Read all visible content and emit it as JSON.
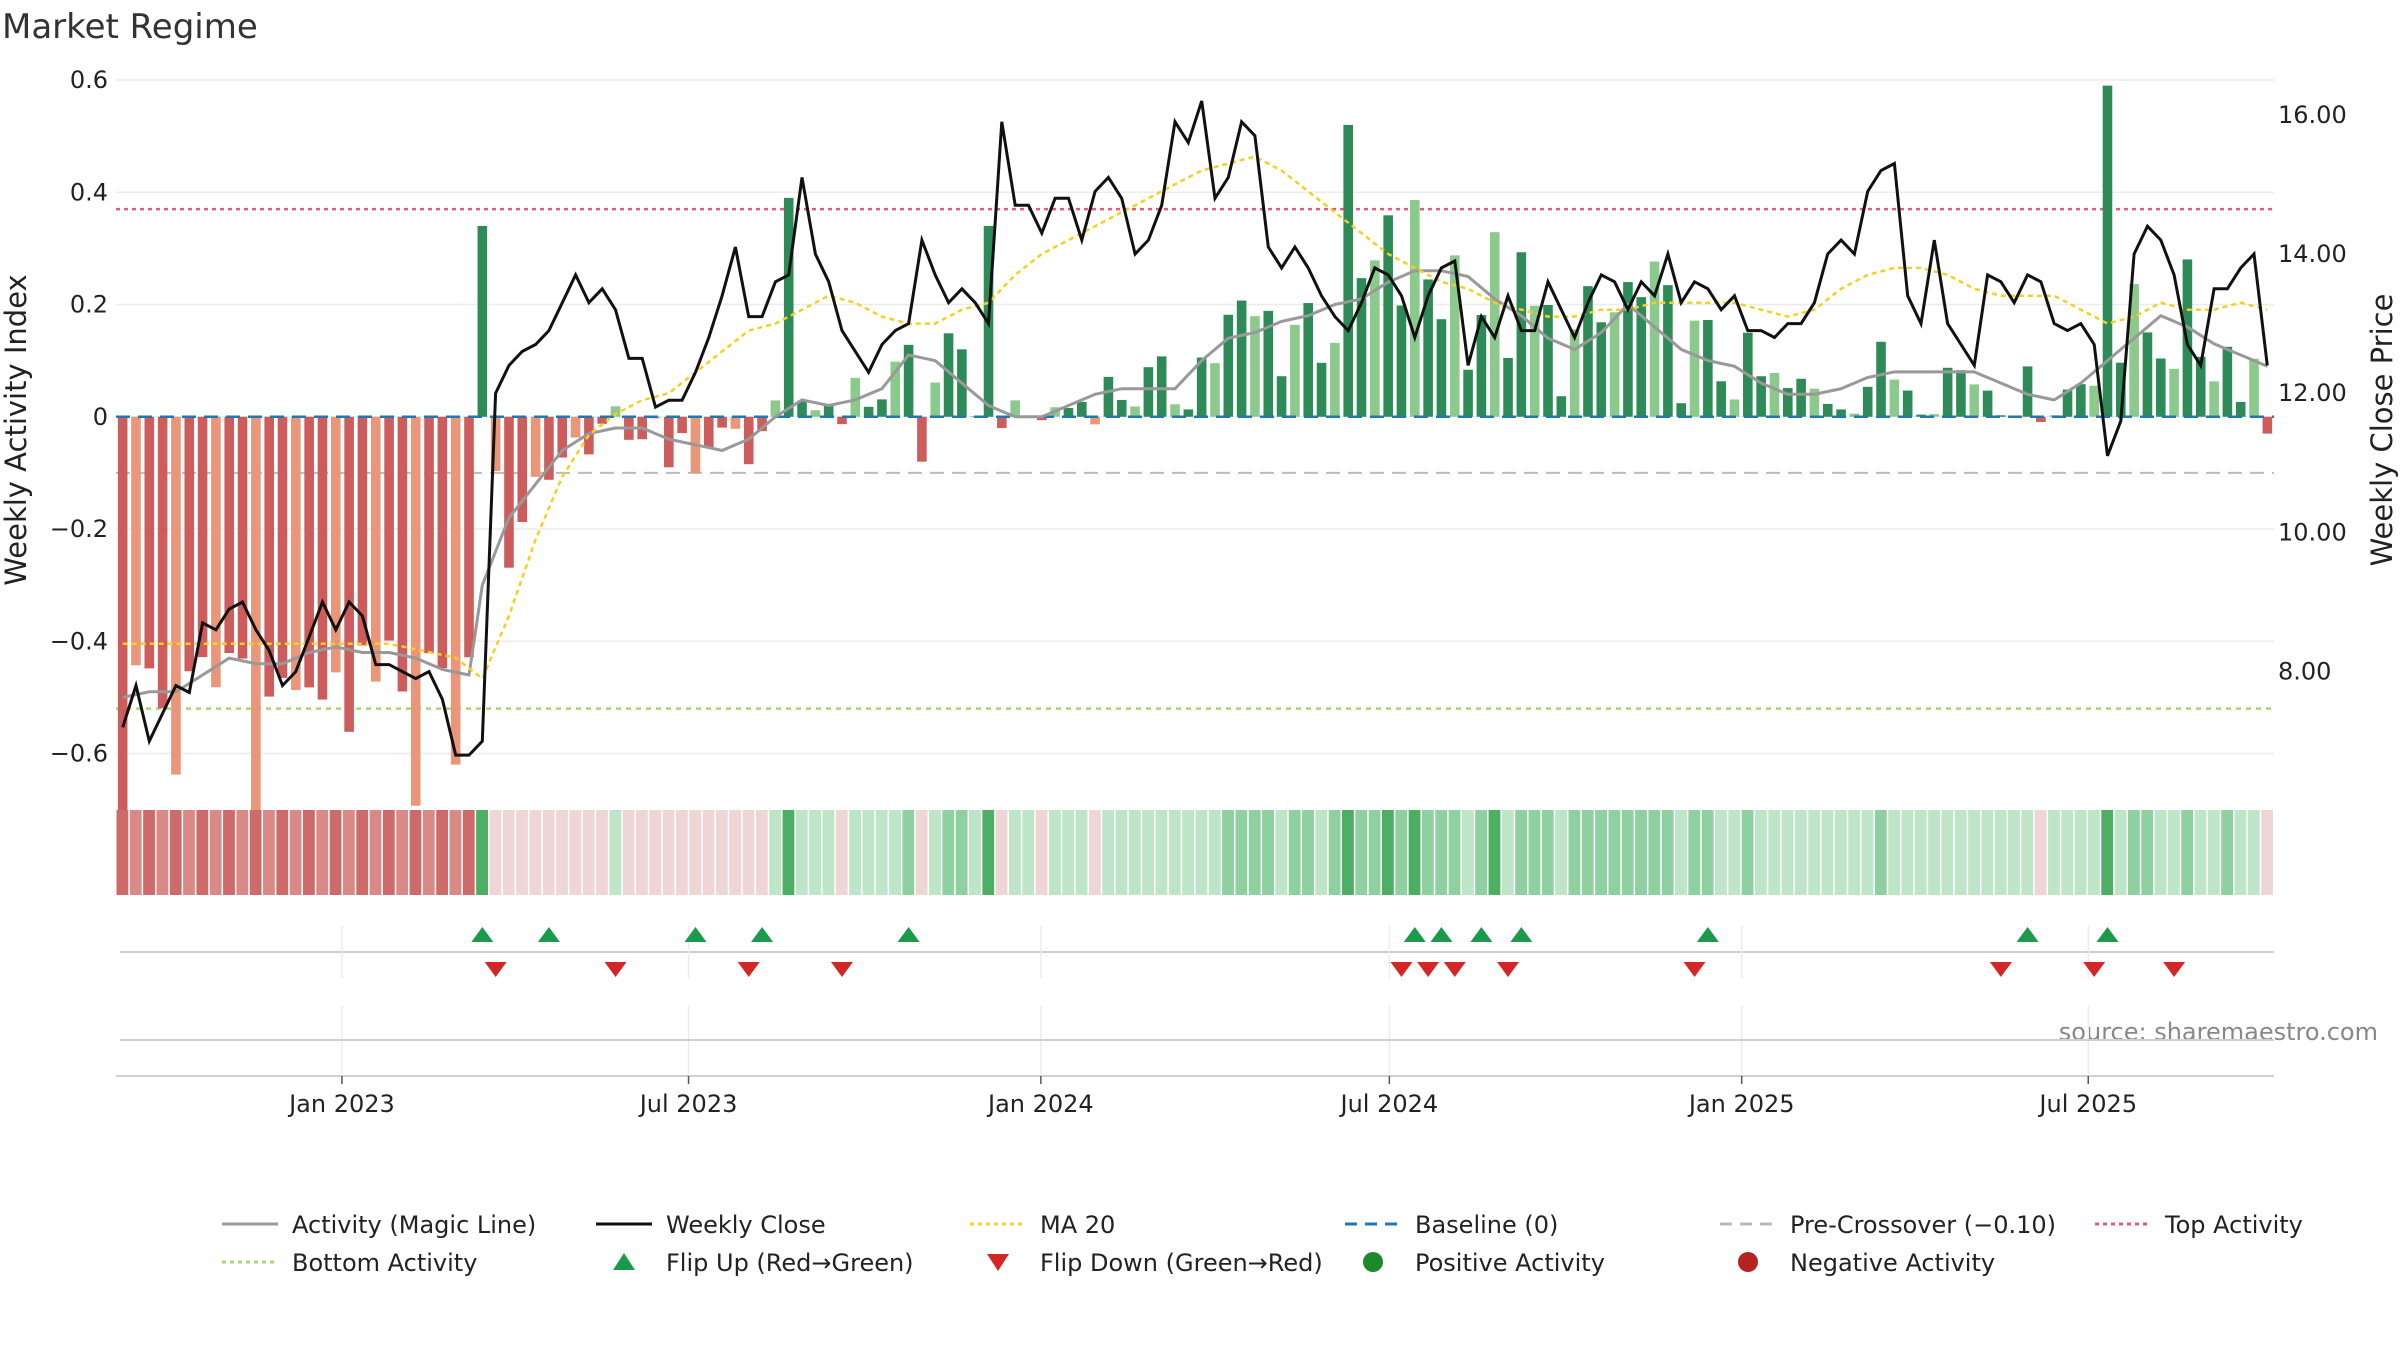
{
  "title": "Market Regime",
  "source": "source: sharemaestro.com",
  "colors": {
    "pos_strong": "#2e8b57",
    "pos_light": "#8cc98c",
    "neg_strong": "#cd5c5c",
    "neg_light": "#e9967a",
    "magic": "#999999",
    "close": "#111111",
    "ma": "#f5d020",
    "baseline": "#1f77b4",
    "precross": "#bbbbbb",
    "top": "#e8597a",
    "bottom": "#a8d86e",
    "flip_up": "#1a9a4a",
    "flip_down": "#d32626"
  },
  "chart_data": {
    "type": "bar",
    "title": "Market Regime",
    "ylabel": "Weekly Activity Index",
    "y2label": "Weekly Close Price",
    "ylim": [
      -0.64,
      0.6
    ],
    "y2lim": [
      6.5,
      16.5
    ],
    "yticks": [
      0.6,
      0.4,
      0.2,
      0,
      -0.2,
      -0.4,
      -0.6
    ],
    "yticklabels": [
      "0.6",
      "0.4",
      "0.2",
      "0",
      "−0.2",
      "−0.4",
      "−0.6"
    ],
    "y2ticks": [
      16,
      14,
      12,
      10,
      8
    ],
    "y2ticklabels": [
      "16.00",
      "14.00",
      "12.00",
      "10.00",
      "8.00"
    ],
    "x_start": "2022-09-05",
    "x_end": "2025-10-06",
    "week_count": 162,
    "xticks": [
      "2023-01-01",
      "2023-07-01",
      "2024-01-01",
      "2024-07-01",
      "2025-01-01",
      "2025-07-01"
    ],
    "xticklabels": [
      "Jan 2023",
      "Jul 2023",
      "Jan 2024",
      "Jul 2024",
      "Jan 2025",
      "Jul 2025"
    ],
    "reference_lines": {
      "baseline": 0,
      "pre_crossover": -0.1,
      "top_activity": 0.37,
      "bottom_activity": -0.52
    },
    "activity_knots": [
      [
        0,
        -0.5
      ],
      [
        2,
        -0.49
      ],
      [
        4,
        -0.49
      ],
      [
        6,
        -0.46
      ],
      [
        8,
        -0.43
      ],
      [
        10,
        -0.44
      ],
      [
        12,
        -0.44
      ],
      [
        14,
        -0.42
      ],
      [
        16,
        -0.41
      ],
      [
        18,
        -0.42
      ],
      [
        20,
        -0.42
      ],
      [
        22,
        -0.43
      ],
      [
        24,
        -0.45
      ],
      [
        26,
        -0.46
      ],
      [
        27,
        -0.3
      ],
      [
        29,
        -0.18
      ],
      [
        31,
        -0.12
      ],
      [
        33,
        -0.06
      ],
      [
        35,
        -0.03
      ],
      [
        37,
        -0.02
      ],
      [
        39,
        -0.02
      ],
      [
        41,
        -0.04
      ],
      [
        43,
        -0.05
      ],
      [
        45,
        -0.06
      ],
      [
        47,
        -0.04
      ],
      [
        49,
        0.0
      ],
      [
        51,
        0.03
      ],
      [
        53,
        0.02
      ],
      [
        55,
        0.03
      ],
      [
        57,
        0.05
      ],
      [
        59,
        0.11
      ],
      [
        61,
        0.1
      ],
      [
        63,
        0.06
      ],
      [
        65,
        0.02
      ],
      [
        67,
        0.0
      ],
      [
        69,
        0.0
      ],
      [
        71,
        0.02
      ],
      [
        73,
        0.04
      ],
      [
        75,
        0.05
      ],
      [
        77,
        0.05
      ],
      [
        79,
        0.05
      ],
      [
        81,
        0.1
      ],
      [
        83,
        0.14
      ],
      [
        85,
        0.15
      ],
      [
        87,
        0.17
      ],
      [
        89,
        0.18
      ],
      [
        91,
        0.2
      ],
      [
        93,
        0.21
      ],
      [
        95,
        0.24
      ],
      [
        97,
        0.26
      ],
      [
        99,
        0.26
      ],
      [
        101,
        0.25
      ],
      [
        103,
        0.21
      ],
      [
        105,
        0.18
      ],
      [
        107,
        0.14
      ],
      [
        109,
        0.12
      ],
      [
        111,
        0.15
      ],
      [
        113,
        0.2
      ],
      [
        115,
        0.16
      ],
      [
        117,
        0.12
      ],
      [
        119,
        0.1
      ],
      [
        121,
        0.09
      ],
      [
        123,
        0.06
      ],
      [
        125,
        0.04
      ],
      [
        127,
        0.04
      ],
      [
        129,
        0.05
      ],
      [
        131,
        0.07
      ],
      [
        133,
        0.08
      ],
      [
        135,
        0.08
      ],
      [
        137,
        0.08
      ],
      [
        139,
        0.08
      ],
      [
        141,
        0.06
      ],
      [
        143,
        0.04
      ],
      [
        145,
        0.03
      ],
      [
        147,
        0.06
      ],
      [
        149,
        0.1
      ],
      [
        151,
        0.14
      ],
      [
        153,
        0.18
      ],
      [
        155,
        0.16
      ],
      [
        157,
        0.13
      ],
      [
        159,
        0.11
      ],
      [
        161,
        0.09
      ]
    ],
    "close_knots": [
      [
        0,
        7.2
      ],
      [
        1,
        7.8
      ],
      [
        2,
        7.0
      ],
      [
        3,
        7.4
      ],
      [
        4,
        7.8
      ],
      [
        5,
        7.7
      ],
      [
        6,
        8.7
      ],
      [
        7,
        8.6
      ],
      [
        8,
        8.9
      ],
      [
        9,
        9.0
      ],
      [
        10,
        8.6
      ],
      [
        11,
        8.3
      ],
      [
        12,
        7.8
      ],
      [
        13,
        8.0
      ],
      [
        14,
        8.5
      ],
      [
        15,
        9.0
      ],
      [
        16,
        8.6
      ],
      [
        17,
        9.0
      ],
      [
        18,
        8.8
      ],
      [
        19,
        8.1
      ],
      [
        20,
        8.1
      ],
      [
        21,
        8.0
      ],
      [
        22,
        7.9
      ],
      [
        23,
        8.0
      ],
      [
        24,
        7.6
      ],
      [
        25,
        6.8
      ],
      [
        26,
        6.8
      ],
      [
        27,
        7.0
      ],
      [
        28,
        12.0
      ],
      [
        29,
        12.4
      ],
      [
        30,
        12.6
      ],
      [
        31,
        12.7
      ],
      [
        32,
        12.9
      ],
      [
        33,
        13.3
      ],
      [
        34,
        13.7
      ],
      [
        35,
        13.3
      ],
      [
        36,
        13.5
      ],
      [
        37,
        13.2
      ],
      [
        38,
        12.5
      ],
      [
        39,
        12.5
      ],
      [
        40,
        11.8
      ],
      [
        41,
        11.9
      ],
      [
        42,
        11.9
      ],
      [
        43,
        12.3
      ],
      [
        44,
        12.8
      ],
      [
        45,
        13.4
      ],
      [
        46,
        14.1
      ],
      [
        47,
        13.1
      ],
      [
        48,
        13.1
      ],
      [
        49,
        13.6
      ],
      [
        50,
        13.7
      ],
      [
        51,
        15.1
      ],
      [
        52,
        14.0
      ],
      [
        53,
        13.6
      ],
      [
        54,
        12.9
      ],
      [
        55,
        12.6
      ],
      [
        56,
        12.3
      ],
      [
        57,
        12.7
      ],
      [
        58,
        12.9
      ],
      [
        59,
        13.0
      ],
      [
        60,
        14.2
      ],
      [
        61,
        13.7
      ],
      [
        62,
        13.3
      ],
      [
        63,
        13.5
      ],
      [
        64,
        13.3
      ],
      [
        65,
        13.0
      ],
      [
        66,
        15.9
      ],
      [
        67,
        14.7
      ],
      [
        68,
        14.7
      ],
      [
        69,
        14.3
      ],
      [
        70,
        14.8
      ],
      [
        71,
        14.8
      ],
      [
        72,
        14.2
      ],
      [
        73,
        14.9
      ],
      [
        74,
        15.1
      ],
      [
        75,
        14.8
      ],
      [
        76,
        14.0
      ],
      [
        77,
        14.2
      ],
      [
        78,
        14.7
      ],
      [
        79,
        15.9
      ],
      [
        80,
        15.6
      ],
      [
        81,
        16.2
      ],
      [
        82,
        14.8
      ],
      [
        83,
        15.1
      ],
      [
        84,
        15.9
      ],
      [
        85,
        15.7
      ],
      [
        86,
        14.1
      ],
      [
        87,
        13.8
      ],
      [
        88,
        14.1
      ],
      [
        89,
        13.8
      ],
      [
        90,
        13.4
      ],
      [
        91,
        13.1
      ],
      [
        92,
        12.9
      ],
      [
        93,
        13.3
      ],
      [
        94,
        13.8
      ],
      [
        95,
        13.7
      ],
      [
        96,
        13.4
      ],
      [
        97,
        12.8
      ],
      [
        98,
        13.4
      ],
      [
        99,
        13.8
      ],
      [
        100,
        13.9
      ],
      [
        101,
        12.4
      ],
      [
        102,
        13.1
      ],
      [
        103,
        12.8
      ],
      [
        104,
        13.4
      ],
      [
        105,
        12.9
      ],
      [
        106,
        12.9
      ],
      [
        107,
        13.6
      ],
      [
        108,
        13.2
      ],
      [
        109,
        12.8
      ],
      [
        110,
        13.3
      ],
      [
        111,
        13.7
      ],
      [
        112,
        13.6
      ],
      [
        113,
        13.2
      ],
      [
        114,
        13.6
      ],
      [
        115,
        13.4
      ],
      [
        116,
        14.0
      ],
      [
        117,
        13.3
      ],
      [
        118,
        13.6
      ],
      [
        119,
        13.5
      ],
      [
        120,
        13.2
      ],
      [
        121,
        13.4
      ],
      [
        122,
        12.9
      ],
      [
        123,
        12.9
      ],
      [
        124,
        12.8
      ],
      [
        125,
        13.0
      ],
      [
        126,
        13.0
      ],
      [
        127,
        13.3
      ],
      [
        128,
        14.0
      ],
      [
        129,
        14.2
      ],
      [
        130,
        14.0
      ],
      [
        131,
        14.9
      ],
      [
        132,
        15.2
      ],
      [
        133,
        15.3
      ],
      [
        134,
        13.4
      ],
      [
        135,
        13.0
      ],
      [
        136,
        14.2
      ],
      [
        137,
        13.0
      ],
      [
        138,
        12.7
      ],
      [
        139,
        12.4
      ],
      [
        140,
        13.7
      ],
      [
        141,
        13.6
      ],
      [
        142,
        13.3
      ],
      [
        143,
        13.7
      ],
      [
        144,
        13.6
      ],
      [
        145,
        13.0
      ],
      [
        146,
        12.9
      ],
      [
        147,
        13.0
      ],
      [
        148,
        12.7
      ],
      [
        149,
        11.1
      ],
      [
        150,
        11.6
      ],
      [
        151,
        14.0
      ],
      [
        152,
        14.4
      ],
      [
        153,
        14.2
      ],
      [
        154,
        13.7
      ],
      [
        155,
        12.7
      ],
      [
        156,
        12.4
      ],
      [
        157,
        13.5
      ],
      [
        158,
        13.5
      ],
      [
        159,
        13.8
      ],
      [
        160,
        14.0
      ],
      [
        161,
        12.4
      ]
    ],
    "ma_knots": [
      [
        0,
        8.4
      ],
      [
        10,
        8.4
      ],
      [
        20,
        8.4
      ],
      [
        25,
        8.2
      ],
      [
        27,
        7.9
      ],
      [
        29,
        8.8
      ],
      [
        31,
        9.9
      ],
      [
        33,
        10.8
      ],
      [
        35,
        11.4
      ],
      [
        37,
        11.7
      ],
      [
        39,
        11.9
      ],
      [
        41,
        12.0
      ],
      [
        43,
        12.3
      ],
      [
        45,
        12.6
      ],
      [
        47,
        12.9
      ],
      [
        49,
        13.0
      ],
      [
        51,
        13.2
      ],
      [
        53,
        13.4
      ],
      [
        55,
        13.3
      ],
      [
        57,
        13.1
      ],
      [
        59,
        13.0
      ],
      [
        61,
        13.0
      ],
      [
        63,
        13.2
      ],
      [
        65,
        13.3
      ],
      [
        67,
        13.7
      ],
      [
        69,
        14.0
      ],
      [
        71,
        14.2
      ],
      [
        73,
        14.4
      ],
      [
        75,
        14.6
      ],
      [
        77,
        14.8
      ],
      [
        79,
        15.0
      ],
      [
        81,
        15.2
      ],
      [
        83,
        15.3
      ],
      [
        85,
        15.4
      ],
      [
        87,
        15.2
      ],
      [
        89,
        14.9
      ],
      [
        91,
        14.6
      ],
      [
        93,
        14.3
      ],
      [
        95,
        14.0
      ],
      [
        97,
        13.8
      ],
      [
        99,
        13.6
      ],
      [
        101,
        13.5
      ],
      [
        103,
        13.3
      ],
      [
        105,
        13.2
      ],
      [
        107,
        13.1
      ],
      [
        109,
        13.1
      ],
      [
        111,
        13.2
      ],
      [
        113,
        13.2
      ],
      [
        115,
        13.3
      ],
      [
        117,
        13.3
      ],
      [
        119,
        13.3
      ],
      [
        121,
        13.3
      ],
      [
        123,
        13.2
      ],
      [
        125,
        13.1
      ],
      [
        127,
        13.2
      ],
      [
        129,
        13.5
      ],
      [
        131,
        13.7
      ],
      [
        133,
        13.8
      ],
      [
        135,
        13.8
      ],
      [
        137,
        13.7
      ],
      [
        139,
        13.5
      ],
      [
        141,
        13.4
      ],
      [
        143,
        13.4
      ],
      [
        145,
        13.4
      ],
      [
        147,
        13.2
      ],
      [
        149,
        13.0
      ],
      [
        151,
        13.1
      ],
      [
        153,
        13.3
      ],
      [
        155,
        13.2
      ],
      [
        157,
        13.2
      ],
      [
        159,
        13.3
      ],
      [
        161,
        13.2
      ]
    ],
    "flip_up_weeks": [
      27,
      32,
      43,
      48,
      59,
      97,
      99,
      102,
      105,
      119,
      143,
      149
    ],
    "flip_down_weeks": [
      28,
      37,
      47,
      54,
      96,
      98,
      100,
      104,
      118,
      141,
      148,
      154
    ]
  },
  "legend": [
    {
      "label": "Activity (Magic Line)",
      "marker": "line",
      "color": "#999999",
      "dash": ""
    },
    {
      "label": "Weekly Close",
      "marker": "line",
      "color": "#111111",
      "dash": ""
    },
    {
      "label": "MA 20",
      "marker": "line",
      "color": "#f5d020",
      "dash": "4 4"
    },
    {
      "label": "Baseline (0)",
      "marker": "line",
      "color": "#1f77b4",
      "dash": "12 8"
    },
    {
      "label": "Pre-Crossover (−0.10)",
      "marker": "line",
      "color": "#bbbbbb",
      "dash": "12 8"
    },
    {
      "label": "Top Activity",
      "marker": "line",
      "color": "#e8597a",
      "dash": "4 4"
    },
    {
      "label": "Bottom Activity",
      "marker": "line",
      "color": "#a8d86e",
      "dash": "4 4"
    },
    {
      "label": "Flip Up (Red→Green)",
      "marker": "tri-up",
      "color": "#1a9a4a",
      "dash": ""
    },
    {
      "label": "Flip Down (Green→Red)",
      "marker": "tri-down",
      "color": "#d32626",
      "dash": ""
    },
    {
      "label": "Positive Activity",
      "marker": "dot",
      "color": "#1a8a2a",
      "dash": ""
    },
    {
      "label": "Negative Activity",
      "marker": "dot",
      "color": "#b52222",
      "dash": ""
    }
  ]
}
